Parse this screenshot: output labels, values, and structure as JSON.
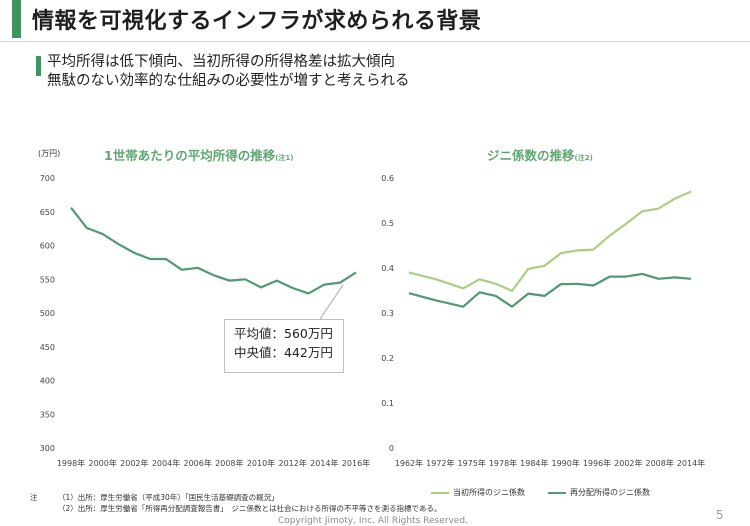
{
  "header": {
    "title": "情報を可視化するインフラが求められる背景",
    "lead_line1": "平均所得は低下傾向、当初所得の所得格差は拡大傾向",
    "lead_line2": "無駄のない効率的な仕組みの必要性が増すと考えられる"
  },
  "colors": {
    "accent": "#3d9460",
    "income_line": "#4f9a6e",
    "initial_gini": "#a8cf82",
    "redistributed_gini": "#4f9a6e"
  },
  "left_chart": {
    "title": "1世帯あたりの平均所得の推移",
    "title_note": "(注1)",
    "unit": "(万円)",
    "callout_mean": "平均値：560万円",
    "callout_median": "中央値：442万円"
  },
  "right_chart": {
    "title": "ジニ係数の推移",
    "title_note": "(注2)",
    "legend_initial": "当初所得のジニ係数",
    "legend_redistributed": "再分配所得のジニ係数"
  },
  "chart_data": [
    {
      "type": "line",
      "title": "1世帯あたりの平均所得の推移",
      "ylabel": "(万円)",
      "ylim": [
        300,
        700
      ],
      "yticks": [
        "700",
        "650",
        "600",
        "550",
        "500",
        "450",
        "400",
        "350",
        "300"
      ],
      "xtick_labels": [
        "1998年",
        "2000年",
        "2002年",
        "2004年",
        "2006年",
        "2008年",
        "2010年",
        "2012年",
        "2014年",
        "2016年"
      ],
      "x": [
        1998,
        1999,
        2000,
        2001,
        2002,
        2003,
        2004,
        2005,
        2006,
        2007,
        2008,
        2009,
        2010,
        2011,
        2012,
        2013,
        2014,
        2015,
        2016
      ],
      "series": [
        {
          "values": [
            656,
            626,
            617,
            602,
            589,
            580,
            580,
            564,
            567,
            556,
            548,
            550,
            538,
            548,
            537,
            529,
            542,
            545,
            560
          ]
        }
      ]
    },
    {
      "type": "line",
      "title": "ジニ係数の推移",
      "ylim": [
        0,
        0.6
      ],
      "yticks": [
        "0.6",
        "0.5",
        "0.4",
        "0.3",
        "0.2",
        "0.1",
        "0"
      ],
      "xtick_labels": [
        "1962年",
        "1972年",
        "1975年",
        "1978年",
        "1984年",
        "1990年",
        "1996年",
        "2002年",
        "2008年",
        "2014年"
      ],
      "x": [
        1962,
        1967,
        1972,
        1975,
        1978,
        1981,
        1984,
        1987,
        1990,
        1993,
        1996,
        1999,
        2002,
        2005,
        2008,
        2011,
        2014
      ],
      "series": [
        {
          "name": "当初所得のジニ係数",
          "values": [
            0.39,
            0.375,
            0.355,
            0.375,
            0.365,
            0.349,
            0.398,
            0.405,
            0.433,
            0.439,
            0.441,
            0.472,
            0.498,
            0.526,
            0.532,
            0.554,
            0.57
          ]
        },
        {
          "name": "再分配所得のジニ係数",
          "values": [
            0.344,
            0.328,
            0.314,
            0.346,
            0.338,
            0.314,
            0.343,
            0.338,
            0.364,
            0.365,
            0.361,
            0.381,
            0.381,
            0.387,
            0.376,
            0.379,
            0.376
          ]
        }
      ]
    }
  ],
  "notes": {
    "prefix": "注",
    "note1_num": "（1）",
    "note1": "出所：厚生労働省（平成30年）「国民生活基礎調査の概況」",
    "note2_num": "（2）",
    "note2": "出所：厚生労働省「所得再分配調査報告書」　ジニ係数とは社会における所得の不平等さを測る指標である。"
  },
  "footer": {
    "copyright": "Copyright Jimoty, Inc. All Rights Reserved.",
    "page": "5"
  }
}
